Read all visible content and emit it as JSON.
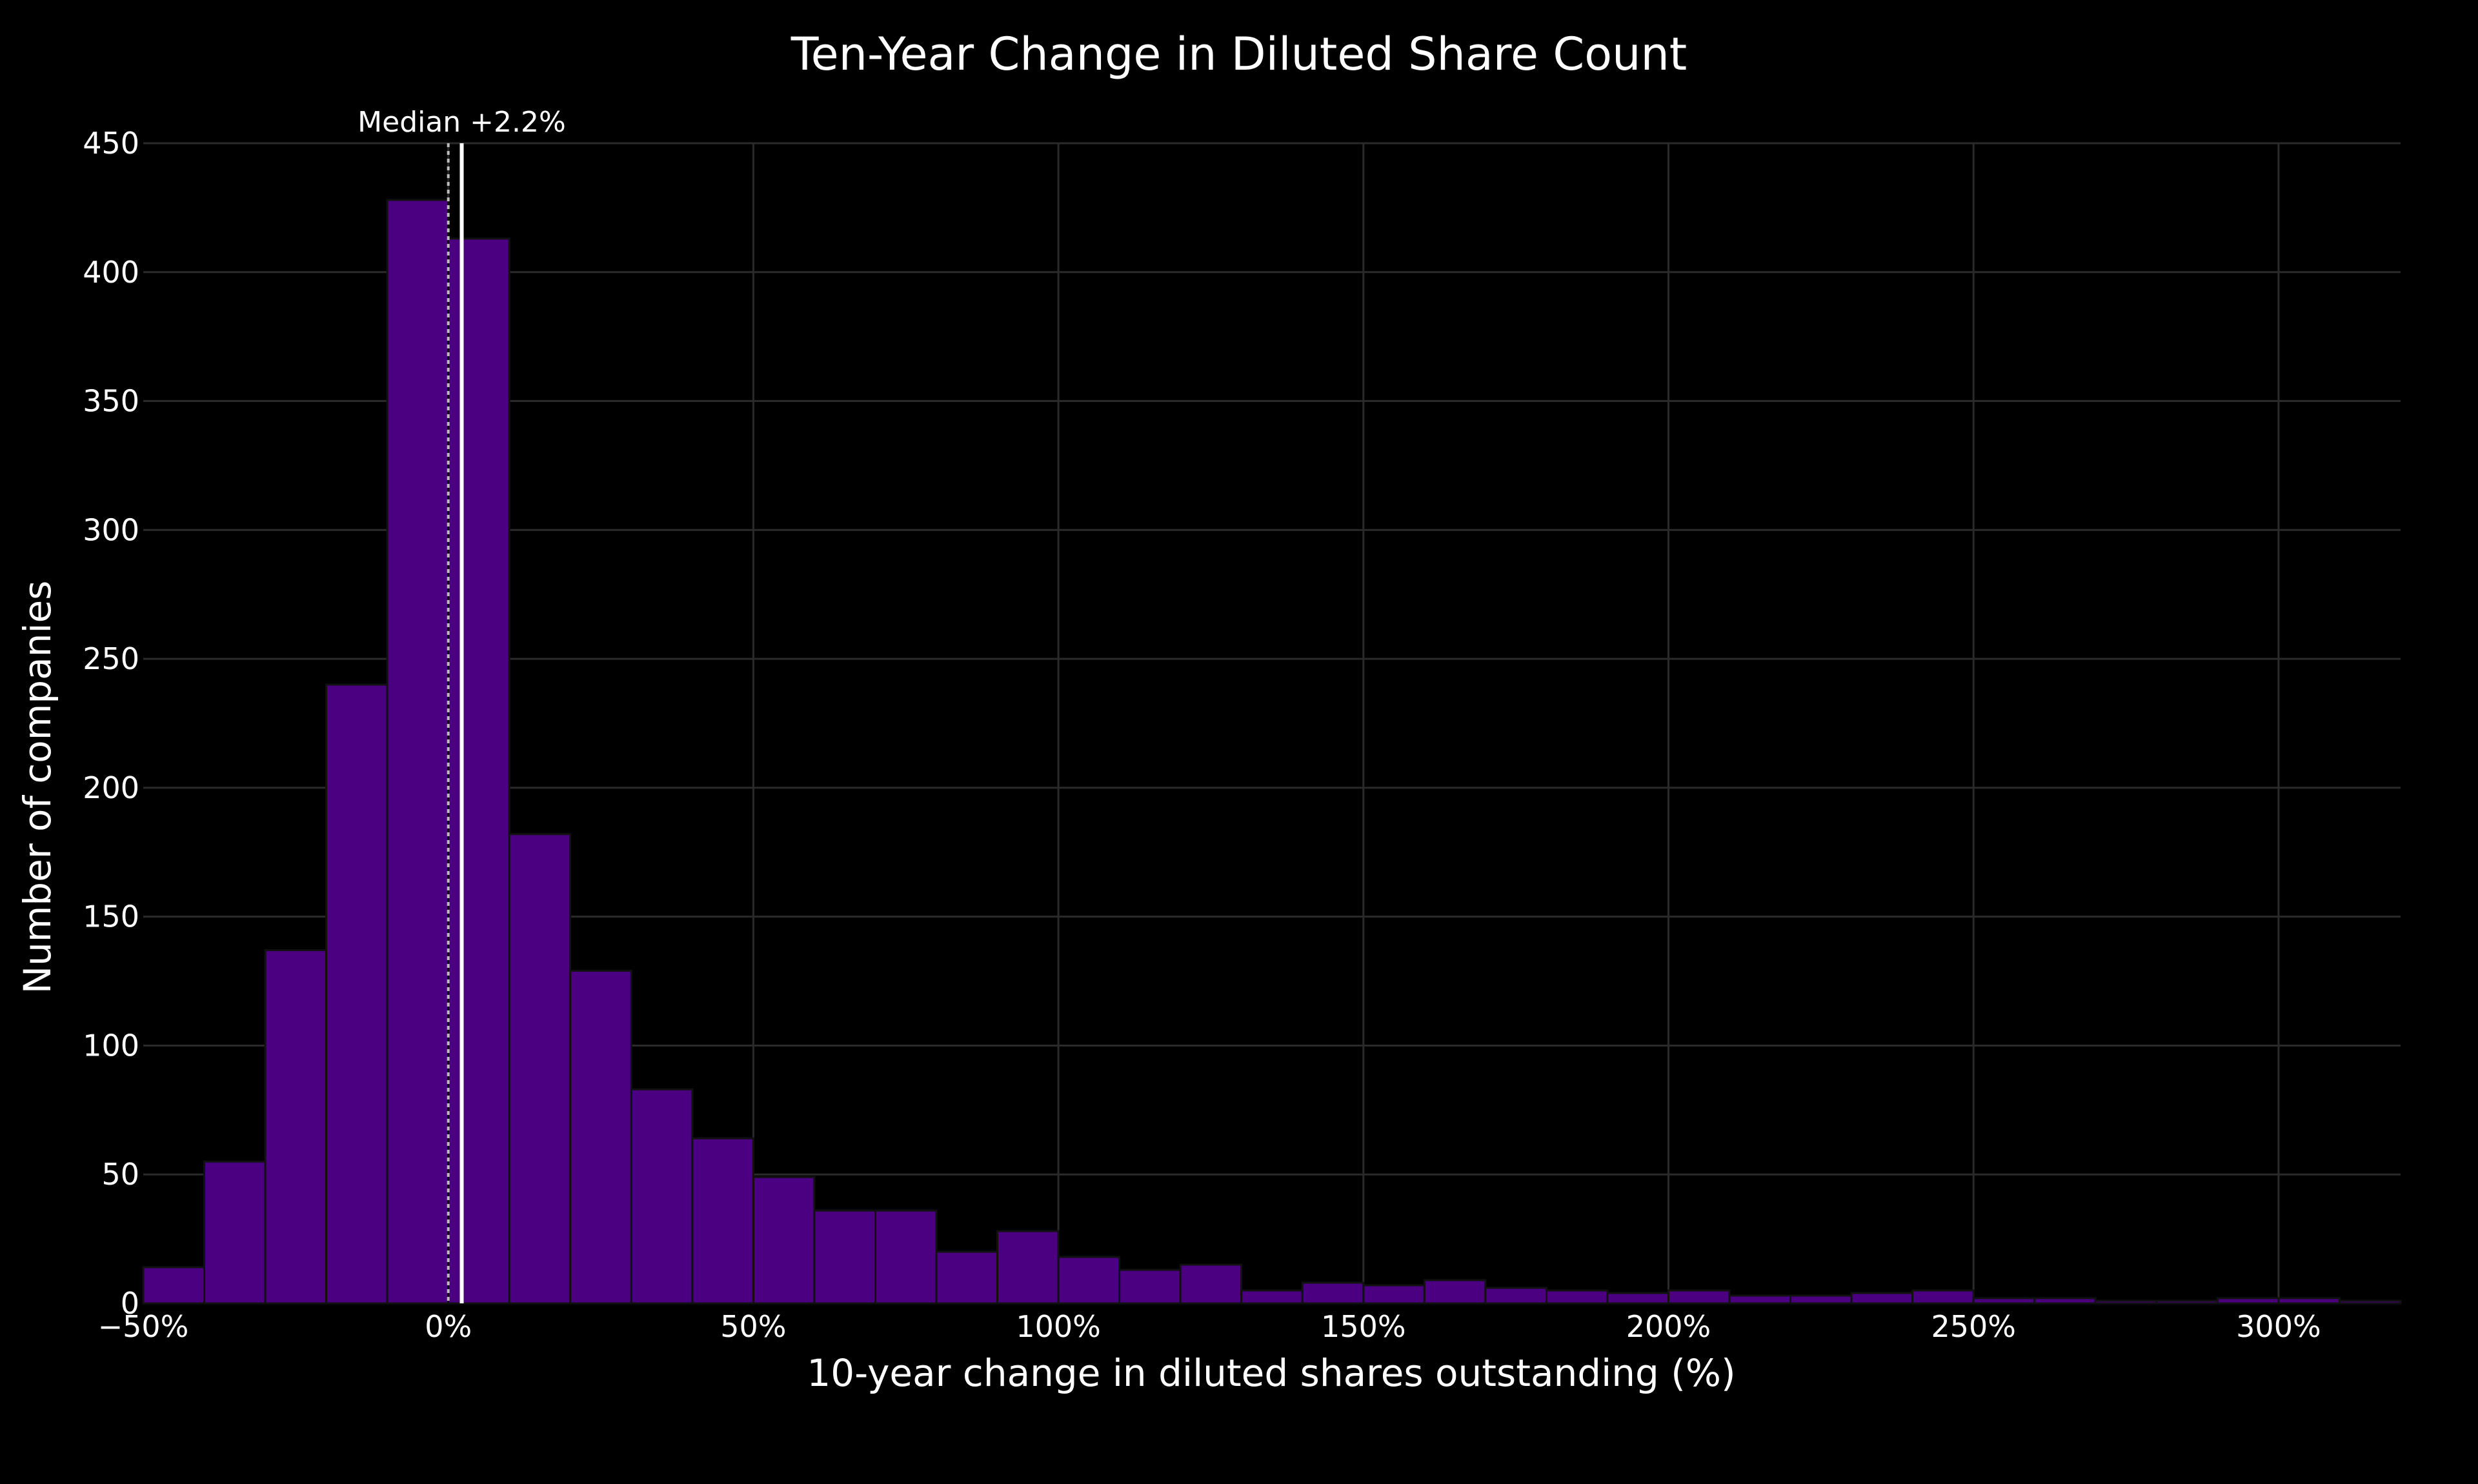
{
  "chart_data": {
    "type": "bar",
    "title": "Ten-Year Change in Diluted Share Count",
    "xlabel": "10-year change in diluted shares outstanding (%)",
    "ylabel": "Number of companies",
    "xlim": [
      -50,
      320
    ],
    "ylim": [
      0,
      450
    ],
    "bin_width": 10,
    "x_ticks": [
      {
        "value": -50,
        "label": "−50%"
      },
      {
        "value": 0,
        "label": "0%"
      },
      {
        "value": 50,
        "label": "50%"
      },
      {
        "value": 100,
        "label": "100%"
      },
      {
        "value": 150,
        "label": "150%"
      },
      {
        "value": 200,
        "label": "200%"
      },
      {
        "value": 250,
        "label": "250%"
      },
      {
        "value": 300,
        "label": "300%"
      }
    ],
    "y_ticks": [
      0,
      50,
      100,
      150,
      200,
      250,
      300,
      350,
      400,
      450
    ],
    "bin_starts": [
      -50,
      -40,
      -30,
      -20,
      -10,
      0,
      10,
      20,
      30,
      40,
      50,
      60,
      70,
      80,
      90,
      100,
      110,
      120,
      130,
      140,
      150,
      160,
      170,
      180,
      190,
      200,
      210,
      220,
      230,
      240,
      250,
      260,
      270,
      280,
      290,
      300,
      310
    ],
    "values": [
      14,
      55,
      137,
      240,
      428,
      413,
      182,
      129,
      83,
      64,
      49,
      36,
      36,
      20,
      28,
      18,
      13,
      15,
      5,
      8,
      7,
      9,
      6,
      5,
      4,
      5,
      3,
      3,
      4,
      5,
      2,
      2,
      1,
      1,
      2,
      2,
      1
    ],
    "bar_color": "#4b0082",
    "median": {
      "value": 2.2,
      "label": "Median +2.2%",
      "color": "#ffffff"
    },
    "zero_line": {
      "value": 0,
      "color": "#bbbbbb",
      "style": "dotted"
    },
    "grid": true,
    "legend": "none",
    "background": "#000000"
  }
}
